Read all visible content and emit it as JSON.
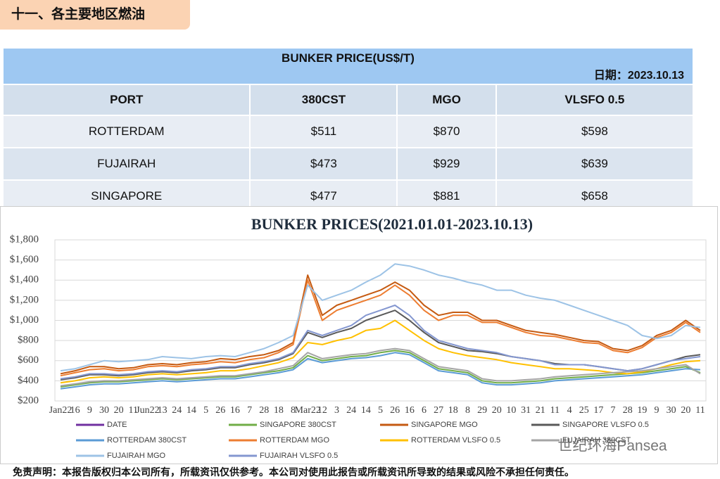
{
  "header": {
    "title": "十一、各主要地区燃油"
  },
  "table": {
    "title": "BUNKER PRICE(US$/T)",
    "date": "日期：2023.10.13",
    "columns": [
      "PORT",
      "380CST",
      "MGO",
      "VLSFO 0.5"
    ],
    "rows": [
      [
        "ROTTERDAM",
        "$511",
        "$870",
        "$598"
      ],
      [
        "FUJAIRAH",
        "$473",
        "$929",
        "$639"
      ],
      [
        "SINGAPORE",
        "$477",
        "$881",
        "$658"
      ]
    ]
  },
  "chart_data": {
    "type": "line",
    "title": "BUNKER PRICES(2021.01.01-2023.10.13)",
    "categories": [
      "Jan22",
      "16",
      "9",
      "30",
      "20",
      "11",
      "Jun22",
      "13",
      "24",
      "14",
      "5",
      "26",
      "16",
      "7",
      "28",
      "18",
      "8",
      "Mar22",
      "12",
      "3",
      "24",
      "14",
      "5",
      "26",
      "16",
      "6",
      "27",
      "18",
      "8",
      "29",
      "20",
      "10",
      "31",
      "21",
      "11",
      "4",
      "25",
      "17",
      "7",
      "28",
      "19",
      "9",
      "30",
      "20",
      "11"
    ],
    "ylim": [
      200,
      1800
    ],
    "yticks": [
      {
        "value": 200,
        "label": "$200"
      },
      {
        "value": 400,
        "label": "$400"
      },
      {
        "value": 600,
        "label": "$600"
      },
      {
        "value": 800,
        "label": "$800"
      },
      {
        "value": 1000,
        "label": "$1,000"
      },
      {
        "value": 1200,
        "label": "$1,200"
      },
      {
        "value": 1400,
        "label": "$1,400"
      },
      {
        "value": 1600,
        "label": "$1,600"
      },
      {
        "value": 1800,
        "label": "$1,800"
      }
    ],
    "grid": true,
    "series": [
      {
        "name": "DATE",
        "color": "#7030a0",
        "values": [
          null,
          null,
          null,
          null,
          null,
          null,
          null,
          null,
          null,
          null,
          null,
          null,
          null,
          null,
          null,
          null,
          null,
          null,
          null,
          null,
          null,
          null,
          null,
          null,
          null,
          null,
          null,
          null,
          null,
          null,
          null,
          null,
          null,
          null,
          null,
          null,
          null,
          null,
          null,
          null,
          null,
          null,
          null,
          null,
          null
        ]
      },
      {
        "name": "SINGAPORE 380CST",
        "color": "#70ad47",
        "values": [
          340,
          360,
          380,
          390,
          390,
          400,
          410,
          420,
          410,
          420,
          430,
          440,
          440,
          460,
          480,
          500,
          530,
          650,
          600,
          620,
          640,
          650,
          680,
          700,
          680,
          600,
          520,
          500,
          480,
          400,
          380,
          380,
          390,
          400,
          420,
          430,
          440,
          450,
          460,
          470,
          480,
          500,
          520,
          540,
          480
        ]
      },
      {
        "name": "SINGAPORE MGO",
        "color": "#c55a11",
        "values": [
          470,
          500,
          540,
          540,
          520,
          530,
          560,
          570,
          560,
          580,
          590,
          620,
          610,
          640,
          660,
          700,
          780,
          1450,
          1050,
          1150,
          1200,
          1250,
          1300,
          1380,
          1300,
          1150,
          1050,
          1080,
          1080,
          1000,
          1000,
          950,
          900,
          880,
          860,
          830,
          800,
          790,
          720,
          700,
          750,
          850,
          900,
          1000,
          900
        ]
      },
      {
        "name": "SINGAPORE VLSFO 0.5",
        "color": "#595959",
        "values": [
          410,
          430,
          460,
          460,
          450,
          460,
          480,
          490,
          480,
          500,
          510,
          530,
          530,
          560,
          580,
          610,
          670,
          880,
          830,
          880,
          920,
          1000,
          1050,
          1100,
          1000,
          880,
          780,
          740,
          700,
          690,
          670,
          640,
          620,
          600,
          570,
          560,
          560,
          540,
          520,
          500,
          520,
          560,
          600,
          640,
          660
        ]
      },
      {
        "name": "ROTTERDAM 380CST",
        "color": "#5b9bd5",
        "values": [
          320,
          340,
          360,
          370,
          370,
          380,
          390,
          400,
          390,
          400,
          410,
          420,
          420,
          440,
          460,
          480,
          510,
          620,
          580,
          600,
          620,
          630,
          650,
          680,
          660,
          580,
          500,
          480,
          460,
          380,
          360,
          360,
          370,
          380,
          400,
          410,
          420,
          430,
          440,
          450,
          460,
          480,
          500,
          520,
          510
        ]
      },
      {
        "name": "ROTTERDAM MGO",
        "color": "#ed7d31",
        "values": [
          450,
          480,
          510,
          520,
          500,
          510,
          540,
          550,
          540,
          560,
          570,
          590,
          580,
          610,
          630,
          680,
          760,
          1400,
          1000,
          1100,
          1150,
          1200,
          1250,
          1350,
          1250,
          1100,
          1000,
          1050,
          1050,
          980,
          980,
          930,
          880,
          850,
          840,
          810,
          780,
          770,
          700,
          680,
          730,
          830,
          880,
          980,
          880
        ]
      },
      {
        "name": "ROTTERDAM VLSFO 0.5",
        "color": "#ffc000",
        "values": [
          380,
          400,
          430,
          440,
          430,
          440,
          460,
          470,
          460,
          470,
          480,
          500,
          500,
          520,
          550,
          580,
          630,
          780,
          760,
          800,
          830,
          900,
          920,
          1000,
          900,
          800,
          720,
          680,
          650,
          630,
          610,
          580,
          560,
          540,
          520,
          520,
          510,
          500,
          480,
          470,
          490,
          520,
          560,
          590,
          600
        ]
      },
      {
        "name": "FUJAIRAH 380CST",
        "color": "#a5a5a5",
        "values": [
          350,
          370,
          390,
          400,
          400,
          410,
          420,
          430,
          420,
          430,
          440,
          450,
          450,
          470,
          490,
          520,
          550,
          680,
          620,
          640,
          660,
          670,
          700,
          720,
          700,
          620,
          540,
          520,
          500,
          420,
          400,
          400,
          410,
          420,
          440,
          450,
          460,
          470,
          480,
          490,
          500,
          520,
          540,
          560,
          470
        ]
      },
      {
        "name": "FUJAIRAH MGO",
        "color": "#9dc3e6",
        "values": [
          500,
          520,
          560,
          600,
          590,
          600,
          610,
          640,
          630,
          620,
          640,
          650,
          640,
          680,
          720,
          780,
          850,
          1350,
          1200,
          1250,
          1300,
          1380,
          1450,
          1560,
          1540,
          1500,
          1450,
          1420,
          1380,
          1350,
          1300,
          1300,
          1250,
          1220,
          1200,
          1150,
          1100,
          1050,
          1000,
          950,
          850,
          820,
          850,
          950,
          930
        ]
      },
      {
        "name": "FUJAIRAH VLSFO 0.5",
        "color": "#8497d0",
        "values": [
          420,
          440,
          470,
          470,
          460,
          470,
          490,
          500,
          490,
          510,
          520,
          540,
          540,
          570,
          590,
          620,
          680,
          900,
          850,
          900,
          950,
          1050,
          1100,
          1150,
          1050,
          900,
          800,
          760,
          720,
          700,
          680,
          640,
          620,
          600,
          560,
          560,
          560,
          540,
          520,
          500,
          520,
          560,
          600,
          620,
          640
        ]
      }
    ]
  },
  "watermark": "世纪环海Pansea",
  "disclaimer": "免责声明：本报告版权归本公司所有，所载资讯仅供参考。本公司对使用此报告或所载资讯所导致的结果或风险不承担任何责任。"
}
